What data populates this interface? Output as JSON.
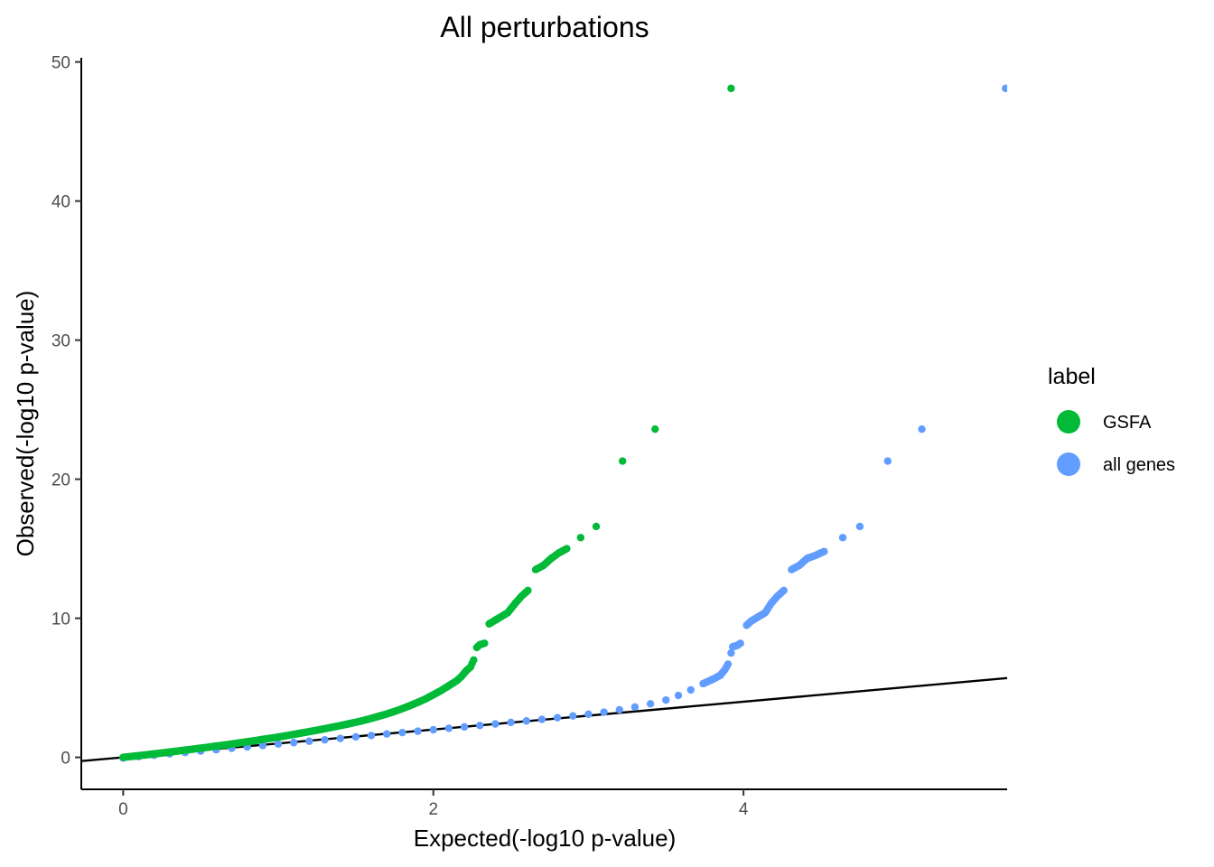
{
  "chart_data": {
    "type": "scatter",
    "title": "All perturbations",
    "xlabel": "Expected(-log10 p-value)",
    "ylabel": "Observed(-log10 p-value)",
    "xlim": [
      -0.27,
      5.7
    ],
    "ylim": [
      -2.3,
      50.3
    ],
    "x_ticks": [
      0,
      2,
      4
    ],
    "y_ticks": [
      0,
      10,
      20,
      30,
      40,
      50
    ],
    "grid": false,
    "legend": {
      "title": "label",
      "position": "right",
      "entries": [
        {
          "label": "GSFA",
          "color": "#00ba38"
        },
        {
          "label": "all genes",
          "color": "#619cff"
        }
      ]
    },
    "reference_line": {
      "intercept": 0,
      "slope": 1,
      "color": "#000000"
    },
    "series": [
      {
        "name": "GSFA",
        "color": "#00ba38",
        "points": [
          [
            0,
            0
          ],
          [
            0.05,
            0.06
          ],
          [
            0.1,
            0.12
          ],
          [
            0.15,
            0.18
          ],
          [
            0.2,
            0.25
          ],
          [
            0.25,
            0.31
          ],
          [
            0.3,
            0.38
          ],
          [
            0.35,
            0.45
          ],
          [
            0.4,
            0.52
          ],
          [
            0.45,
            0.59
          ],
          [
            0.5,
            0.66
          ],
          [
            0.55,
            0.73
          ],
          [
            0.6,
            0.81
          ],
          [
            0.65,
            0.88
          ],
          [
            0.7,
            0.96
          ],
          [
            0.75,
            1.04
          ],
          [
            0.8,
            1.12
          ],
          [
            0.85,
            1.2
          ],
          [
            0.9,
            1.29
          ],
          [
            0.95,
            1.37
          ],
          [
            1.0,
            1.46
          ],
          [
            1.05,
            1.55
          ],
          [
            1.1,
            1.65
          ],
          [
            1.15,
            1.75
          ],
          [
            1.2,
            1.85
          ],
          [
            1.25,
            1.95
          ],
          [
            1.3,
            2.06
          ],
          [
            1.35,
            2.17
          ],
          [
            1.4,
            2.28
          ],
          [
            1.45,
            2.4
          ],
          [
            1.5,
            2.52
          ],
          [
            1.55,
            2.65
          ],
          [
            1.6,
            2.8
          ],
          [
            1.65,
            2.96
          ],
          [
            1.7,
            3.12
          ],
          [
            1.75,
            3.3
          ],
          [
            1.8,
            3.5
          ],
          [
            1.85,
            3.72
          ],
          [
            1.9,
            3.95
          ],
          [
            1.95,
            4.2
          ],
          [
            2.0,
            4.5
          ],
          [
            2.05,
            4.8
          ],
          [
            2.1,
            5.15
          ],
          [
            2.15,
            5.5
          ],
          [
            2.18,
            5.8
          ],
          [
            2.21,
            6.2
          ],
          [
            2.24,
            6.5
          ],
          [
            2.26,
            7.0
          ],
          [
            2.28,
            7.9
          ],
          [
            2.3,
            8.1
          ],
          [
            2.33,
            8.2
          ],
          [
            2.36,
            9.6
          ],
          [
            2.39,
            9.8
          ],
          [
            2.42,
            10.0
          ],
          [
            2.45,
            10.2
          ],
          [
            2.48,
            10.4
          ],
          [
            2.53,
            11.1
          ],
          [
            2.57,
            11.6
          ],
          [
            2.61,
            12.0
          ],
          [
            2.66,
            13.5
          ],
          [
            2.71,
            13.8
          ],
          [
            2.76,
            14.3
          ],
          [
            2.81,
            14.7
          ],
          [
            2.86,
            15.0
          ],
          [
            2.95,
            15.8
          ],
          [
            3.05,
            16.6
          ],
          [
            3.22,
            21.3
          ],
          [
            3.43,
            23.6
          ],
          [
            3.92,
            48.1
          ]
        ]
      },
      {
        "name": "all genes",
        "color": "#619cff",
        "points": [
          [
            0,
            -0.05
          ],
          [
            0.1,
            0.05
          ],
          [
            0.2,
            0.15
          ],
          [
            0.3,
            0.25
          ],
          [
            0.4,
            0.35
          ],
          [
            0.5,
            0.45
          ],
          [
            0.6,
            0.55
          ],
          [
            0.7,
            0.65
          ],
          [
            0.8,
            0.75
          ],
          [
            0.9,
            0.85
          ],
          [
            1.0,
            0.96
          ],
          [
            1.1,
            1.06
          ],
          [
            1.2,
            1.16
          ],
          [
            1.3,
            1.26
          ],
          [
            1.4,
            1.36
          ],
          [
            1.5,
            1.47
          ],
          [
            1.6,
            1.57
          ],
          [
            1.7,
            1.68
          ],
          [
            1.8,
            1.78
          ],
          [
            1.9,
            1.88
          ],
          [
            2.0,
            1.98
          ],
          [
            2.1,
            2.09
          ],
          [
            2.2,
            2.19
          ],
          [
            2.3,
            2.29
          ],
          [
            2.4,
            2.4
          ],
          [
            2.5,
            2.51
          ],
          [
            2.6,
            2.62
          ],
          [
            2.7,
            2.73
          ],
          [
            2.8,
            2.85
          ],
          [
            2.9,
            2.98
          ],
          [
            3.0,
            3.1
          ],
          [
            3.1,
            3.25
          ],
          [
            3.2,
            3.42
          ],
          [
            3.3,
            3.62
          ],
          [
            3.4,
            3.85
          ],
          [
            3.5,
            4.12
          ],
          [
            3.58,
            4.45
          ],
          [
            3.66,
            4.85
          ],
          [
            3.74,
            5.3
          ],
          [
            3.8,
            5.6
          ],
          [
            3.85,
            5.9
          ],
          [
            3.88,
            6.3
          ],
          [
            3.9,
            6.7
          ],
          [
            3.92,
            7.5
          ],
          [
            3.93,
            7.95
          ],
          [
            3.96,
            8.05
          ],
          [
            3.98,
            8.2
          ],
          [
            4.02,
            9.5
          ],
          [
            4.05,
            9.8
          ],
          [
            4.08,
            10.0
          ],
          [
            4.11,
            10.2
          ],
          [
            4.14,
            10.4
          ],
          [
            4.18,
            11.1
          ],
          [
            4.22,
            11.6
          ],
          [
            4.26,
            12.0
          ],
          [
            4.31,
            13.5
          ],
          [
            4.36,
            13.8
          ],
          [
            4.41,
            14.3
          ],
          [
            4.46,
            14.5
          ],
          [
            4.52,
            14.8
          ],
          [
            4.64,
            15.8
          ],
          [
            4.75,
            16.6
          ],
          [
            4.93,
            21.3
          ],
          [
            5.15,
            23.6
          ],
          [
            5.69,
            48.1
          ]
        ]
      }
    ]
  }
}
